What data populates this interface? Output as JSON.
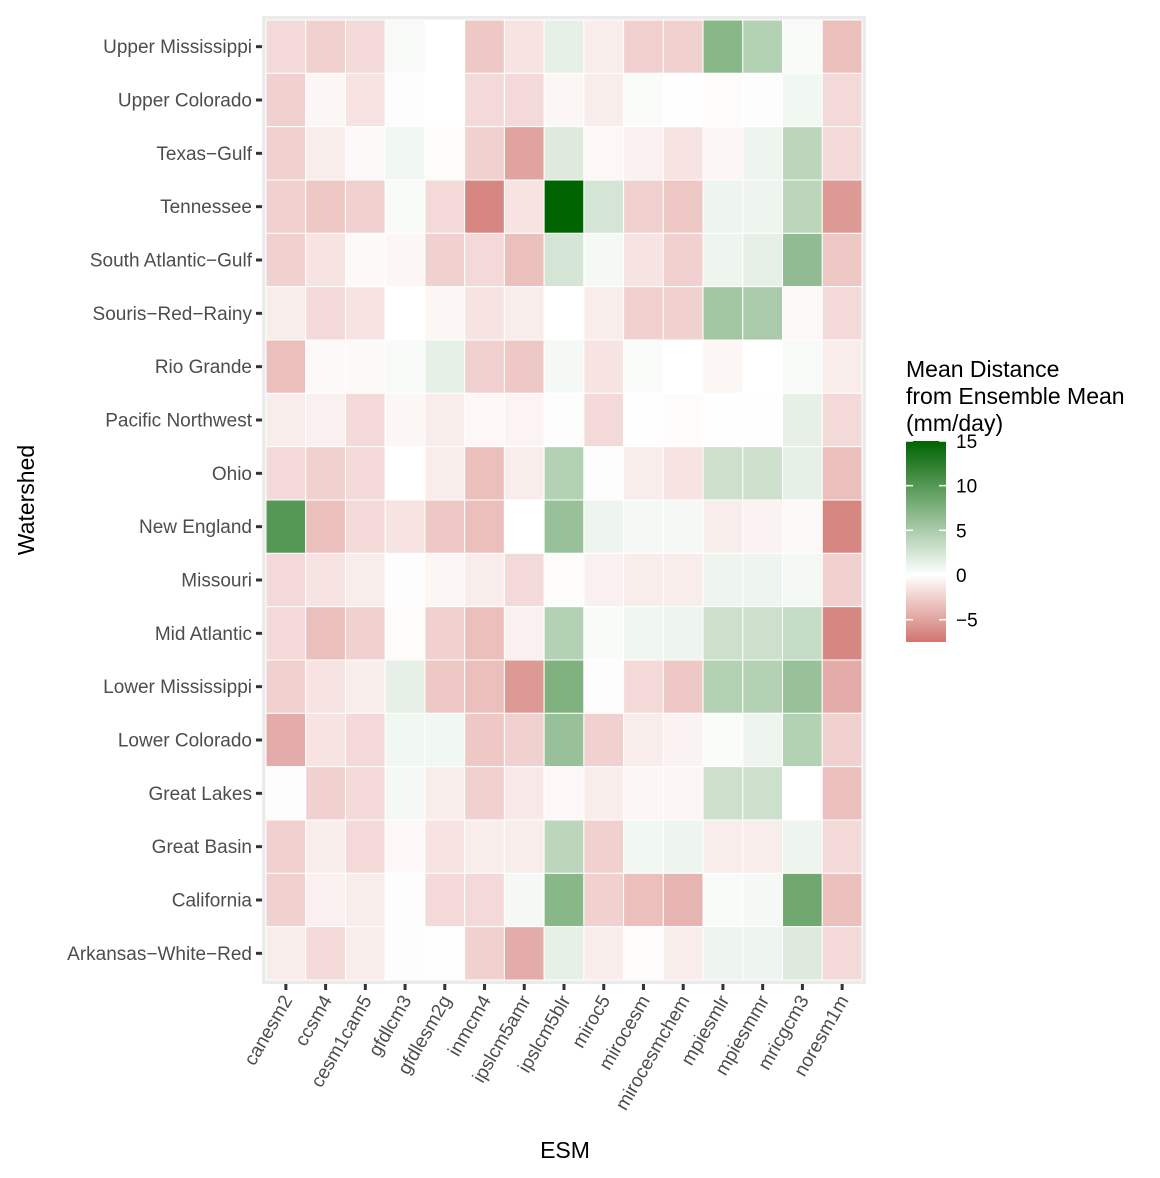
{
  "chart_data": {
    "type": "heatmap",
    "xlabel": "ESM",
    "ylabel": "Watershed",
    "x": [
      "canesm2",
      "ccsm4",
      "cesm1cam5",
      "gfdlcm3",
      "gfdlesm2g",
      "inmcm4",
      "ipslcm5amr",
      "ipslcm5blr",
      "miroc5",
      "mirocesm",
      "mirocesmchem",
      "mpiesmlr",
      "mpiesmmr",
      "mricgcm3",
      "noresm1m"
    ],
    "y": [
      "Upper Mississippi",
      "Upper Colorado",
      "Texas−Gulf",
      "Tennessee",
      "South Atlantic−Gulf",
      "Souris−Red−Rainy",
      "Rio Grande",
      "Pacific Northwest",
      "Ohio",
      "New England",
      "Missouri",
      "Mid Atlantic",
      "Lower Mississippi",
      "Lower Colorado",
      "Great Lakes",
      "Great Basin",
      "California",
      "Arkansas−White−Red"
    ],
    "values": [
      [
        -2.0,
        -2.5,
        -2.0,
        0.5,
        0.0,
        -3.0,
        -1.5,
        1.5,
        -1.0,
        -2.5,
        -2.5,
        7.0,
        4.5,
        0.5,
        -3.5
      ],
      [
        -2.5,
        -0.5,
        -1.5,
        0.2,
        0.0,
        -2.0,
        -2.0,
        -0.5,
        -1.0,
        0.3,
        0.1,
        -0.2,
        0.2,
        0.8,
        -2.0
      ],
      [
        -2.5,
        -1.0,
        -0.3,
        0.8,
        -0.2,
        -2.5,
        -5.0,
        2.0,
        -0.4,
        -0.8,
        -1.5,
        -0.5,
        1.0,
        4.0,
        -2.0
      ],
      [
        -2.5,
        -3.0,
        -2.5,
        0.4,
        -2.0,
        -6.5,
        -1.5,
        15.0,
        2.5,
        -2.5,
        -3.0,
        1.0,
        1.0,
        4.0,
        -5.5
      ],
      [
        -2.5,
        -1.5,
        -0.3,
        -0.5,
        -2.5,
        -2.0,
        -3.5,
        2.5,
        0.6,
        -1.5,
        -2.5,
        1.0,
        1.5,
        6.5,
        -3.0
      ],
      [
        -1.0,
        -2.0,
        -1.5,
        0.0,
        -0.5,
        -1.5,
        -1.0,
        0.0,
        -1.0,
        -2.5,
        -2.5,
        5.5,
        5.0,
        -0.3,
        -2.0
      ],
      [
        -3.5,
        -0.3,
        -0.3,
        0.5,
        1.5,
        -2.5,
        -3.0,
        0.6,
        -1.5,
        0.3,
        0.0,
        -0.5,
        0.0,
        0.5,
        -1.0
      ],
      [
        -1.0,
        -0.8,
        -2.0,
        -0.5,
        -1.0,
        -0.4,
        -0.6,
        0.2,
        -2.0,
        0.1,
        -0.2,
        0.1,
        0.1,
        1.5,
        -2.0
      ],
      [
        -2.0,
        -2.5,
        -2.0,
        0.0,
        -1.0,
        -3.5,
        -1.0,
        4.5,
        -0.1,
        -1.0,
        -1.5,
        3.0,
        3.0,
        1.5,
        -3.5
      ],
      [
        10.0,
        -3.5,
        -2.0,
        -1.5,
        -3.0,
        -3.5,
        0.0,
        6.0,
        1.0,
        0.6,
        0.6,
        -1.0,
        -0.7,
        -0.3,
        -6.5
      ],
      [
        -2.0,
        -1.5,
        -1.0,
        -0.1,
        -0.5,
        -1.0,
        -2.0,
        -0.2,
        -0.8,
        -1.0,
        -1.0,
        1.0,
        1.0,
        0.7,
        -2.5
      ],
      [
        -2.0,
        -3.5,
        -2.5,
        -0.2,
        -2.5,
        -3.5,
        -0.8,
        4.5,
        0.4,
        0.9,
        1.0,
        3.0,
        3.0,
        3.5,
        -6.5
      ],
      [
        -2.5,
        -1.5,
        -1.0,
        1.5,
        -3.0,
        -3.5,
        -5.5,
        7.5,
        0.2,
        -2.0,
        -3.0,
        4.5,
        4.5,
        6.0,
        -4.5
      ],
      [
        -4.5,
        -1.5,
        -2.0,
        0.8,
        0.8,
        -3.0,
        -2.5,
        6.0,
        -2.5,
        -1.0,
        -0.7,
        0.3,
        1.0,
        4.5,
        -2.5
      ],
      [
        -0.1,
        -2.5,
        -2.0,
        0.6,
        -1.0,
        -2.5,
        -1.2,
        -0.4,
        -1.0,
        -0.5,
        -0.5,
        3.0,
        3.0,
        0.0,
        -3.5
      ],
      [
        -2.5,
        -1.0,
        -2.0,
        -0.4,
        -1.5,
        -1.0,
        -1.0,
        4.0,
        -2.5,
        0.8,
        1.0,
        -1.0,
        -1.0,
        1.0,
        -2.0
      ],
      [
        -2.5,
        -0.8,
        -1.0,
        -0.1,
        -2.0,
        -2.0,
        0.6,
        7.0,
        -2.5,
        -3.5,
        -4.0,
        0.4,
        0.6,
        8.5,
        -3.5
      ],
      [
        -1.0,
        -2.0,
        -1.0,
        0.2,
        0.1,
        -2.5,
        -4.5,
        1.5,
        -1.0,
        -0.2,
        -1.0,
        1.0,
        1.0,
        2.0,
        -2.0
      ]
    ],
    "legend": {
      "title": [
        "Mean Distance",
        "from Ensemble Mean",
        "(mm/day)"
      ],
      "ticks": [
        15,
        10,
        5,
        0,
        -5
      ],
      "tick_labels": [
        "15",
        "10",
        "5",
        "0",
        "−5"
      ],
      "range": [
        -7.5,
        15
      ]
    },
    "colors": {
      "low": "#D1756F",
      "mid": "#FFFFFF",
      "high": "#006400",
      "panel": "#EBEBEB"
    }
  }
}
